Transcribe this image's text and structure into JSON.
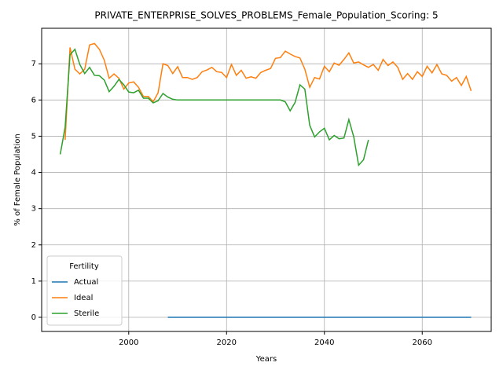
{
  "chart_data": {
    "type": "line",
    "title": "PRIVATE_ENTERPRISE_SOLVES_PROBLEMS_Female_Population_Scoring: 5",
    "x_label": "Years",
    "y_label": "% of Female Population",
    "x": [
      1986,
      1987,
      1988,
      1989,
      1990,
      1991,
      1992,
      1993,
      1994,
      1995,
      1996,
      1997,
      1998,
      1999,
      2000,
      2001,
      2002,
      2003,
      2004,
      2005,
      2006,
      2007,
      2008,
      2009,
      2010,
      2011,
      2012,
      2013,
      2014,
      2015,
      2016,
      2017,
      2018,
      2019,
      2020,
      2021,
      2022,
      2023,
      2024,
      2025,
      2026,
      2027,
      2028,
      2029,
      2030,
      2031,
      2032,
      2033,
      2034,
      2035,
      2036,
      2037,
      2038,
      2039,
      2040,
      2041,
      2042,
      2043,
      2044,
      2045,
      2046,
      2047,
      2048,
      2049,
      2050,
      2051,
      2052,
      2053,
      2054,
      2055,
      2056,
      2057,
      2058,
      2059,
      2060,
      2061,
      2062,
      2063,
      2064,
      2065,
      2066,
      2067,
      2068,
      2069,
      2070
    ],
    "series": [
      {
        "name": "Actual",
        "color": "#1f77b4",
        "values": [
          null,
          null,
          null,
          null,
          null,
          null,
          null,
          null,
          null,
          null,
          null,
          null,
          null,
          null,
          null,
          null,
          null,
          null,
          null,
          null,
          null,
          null,
          0,
          0,
          0,
          0,
          0,
          0,
          0,
          0,
          0,
          0,
          0,
          0,
          0,
          0,
          0,
          0,
          0,
          0,
          0,
          0,
          0,
          0,
          0,
          0,
          0,
          0,
          0,
          0,
          0,
          0,
          0,
          0,
          0,
          0,
          0,
          0,
          0,
          0,
          0,
          0,
          0,
          0,
          0,
          0,
          0,
          0,
          0,
          0,
          0,
          0,
          0,
          0,
          0,
          0,
          0,
          0,
          0,
          0,
          0,
          0,
          0,
          0,
          0
        ]
      },
      {
        "name": "Ideal",
        "color": "#ff7f0e",
        "values": [
          null,
          4.9,
          7.45,
          6.85,
          6.72,
          6.85,
          7.52,
          7.56,
          7.4,
          7.1,
          6.6,
          6.72,
          6.6,
          6.3,
          6.47,
          6.5,
          6.35,
          6.1,
          6.1,
          5.95,
          6.2,
          7.0,
          6.95,
          6.73,
          6.92,
          6.62,
          6.62,
          6.57,
          6.62,
          6.78,
          6.83,
          6.9,
          6.78,
          6.76,
          6.62,
          6.98,
          6.68,
          6.82,
          6.6,
          6.64,
          6.6,
          6.76,
          6.82,
          6.87,
          7.15,
          7.17,
          7.35,
          7.27,
          7.2,
          7.16,
          6.85,
          6.35,
          6.62,
          6.58,
          6.93,
          6.78,
          7.02,
          6.96,
          7.12,
          7.3,
          7.02,
          7.05,
          6.97,
          6.9,
          6.98,
          6.82,
          7.12,
          6.95,
          7.05,
          6.9,
          6.57,
          6.73,
          6.57,
          6.78,
          6.65,
          6.93,
          6.75,
          6.98,
          6.72,
          6.68,
          6.52,
          6.62,
          6.4,
          6.65,
          6.25
        ]
      },
      {
        "name": "Sterile",
        "color": "#2ca02c",
        "values": [
          4.5,
          5.25,
          7.25,
          7.4,
          6.98,
          6.73,
          6.9,
          6.68,
          6.67,
          6.55,
          6.23,
          6.38,
          6.57,
          6.42,
          6.22,
          6.2,
          6.27,
          6.05,
          6.05,
          5.92,
          5.98,
          6.18,
          6.08,
          6.02,
          6.0,
          6.0,
          6.0,
          6.0,
          6.0,
          6.0,
          6.0,
          6.0,
          6.0,
          6.0,
          6.0,
          6.0,
          6.0,
          6.0,
          6.0,
          6.0,
          6.0,
          6.0,
          6.0,
          6.0,
          6.0,
          6.0,
          5.95,
          5.7,
          5.93,
          6.42,
          6.3,
          5.3,
          4.98,
          5.12,
          5.22,
          4.9,
          5.02,
          4.93,
          4.95,
          5.46,
          4.98,
          4.2,
          4.35,
          4.9,
          null,
          null,
          null,
          null,
          null,
          null,
          null,
          null,
          null,
          null,
          null,
          null,
          null,
          null,
          null,
          null,
          null,
          null,
          null,
          null,
          null
        ]
      }
    ],
    "xlim": [
      1982.2,
      2074.1
    ],
    "ylim": [
      -0.39,
      7.98
    ],
    "xticks": [
      2000,
      2020,
      2040,
      2060
    ],
    "yticks": [
      0,
      1,
      2,
      3,
      4,
      5,
      6,
      7
    ],
    "grid": true,
    "legend": {
      "title": "Fertility",
      "loc": "lower left"
    }
  }
}
